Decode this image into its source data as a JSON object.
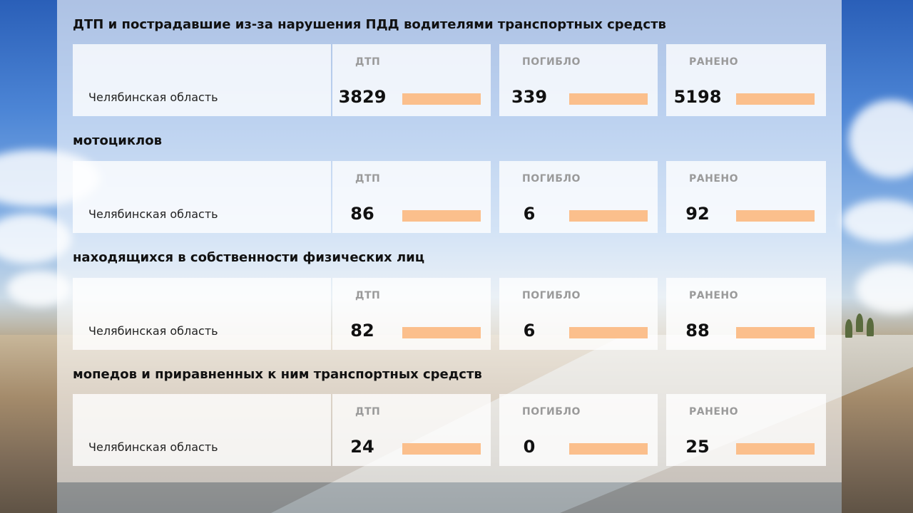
{
  "accent_color": "#fbbf8c",
  "sections": [
    {
      "title": "ДТП и пострадавшие из-за нарушения ПДД водителями транспортных средств",
      "region": "Челябинская область",
      "metrics": [
        {
          "label": "ДТП",
          "value": "3829",
          "bar_fill": 1.0
        },
        {
          "label": "ПОГИБЛО",
          "value": "339",
          "bar_fill": 1.0
        },
        {
          "label": "РАНЕНО",
          "value": "5198",
          "bar_fill": 1.0
        }
      ]
    },
    {
      "title": "мотоциклов",
      "region": "Челябинская область",
      "metrics": [
        {
          "label": "ДТП",
          "value": "86",
          "bar_fill": 1.0
        },
        {
          "label": "ПОГИБЛО",
          "value": "6",
          "bar_fill": 1.0
        },
        {
          "label": "РАНЕНО",
          "value": "92",
          "bar_fill": 1.0
        }
      ]
    },
    {
      "title": "находящихся в собственности физических лиц",
      "region": "Челябинская область",
      "metrics": [
        {
          "label": "ДТП",
          "value": "82",
          "bar_fill": 1.0
        },
        {
          "label": "ПОГИБЛО",
          "value": "6",
          "bar_fill": 1.0
        },
        {
          "label": "РАНЕНО",
          "value": "88",
          "bar_fill": 1.0
        }
      ]
    },
    {
      "title": "мопедов и приравненных к ним транспортных средств",
      "region": "Челябинская область",
      "metrics": [
        {
          "label": "ДТП",
          "value": "24",
          "bar_fill": 1.0
        },
        {
          "label": "ПОГИБЛО",
          "value": "0",
          "bar_fill": 1.0
        },
        {
          "label": "РАНЕНО",
          "value": "25",
          "bar_fill": 1.0
        }
      ]
    }
  ]
}
